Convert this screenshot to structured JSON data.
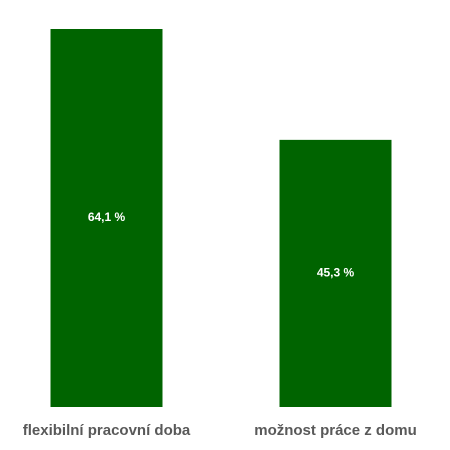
{
  "chart_data": {
    "type": "bar",
    "categories": [
      "flexibilní pracovní doba",
      "možnost práce z domu"
    ],
    "values": [
      64.1,
      45.3
    ],
    "value_labels": [
      "64,1 %",
      "45,3 %"
    ],
    "color": "#006400"
  }
}
